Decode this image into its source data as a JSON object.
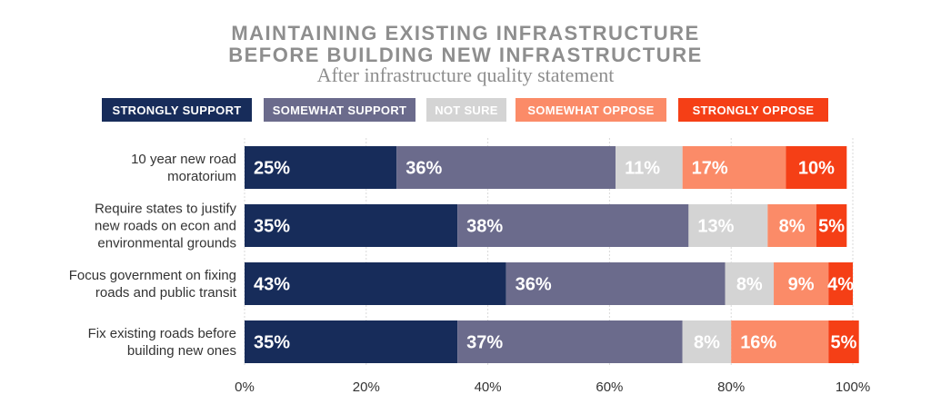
{
  "chart_data": {
    "type": "bar",
    "orientation": "horizontal",
    "stacked": true,
    "title_line1": "MAINTAINING EXISTING INFRASTRUCTURE",
    "title_line2": "BEFORE BUILDING NEW INFRASTRUCTURE",
    "subtitle": "After infrastructure quality statement",
    "categories": [
      [
        "10 year new road",
        "moratorium"
      ],
      [
        "Require states to justify",
        "new roads on econ and",
        "environmental grounds"
      ],
      [
        "Focus government on fixing",
        "roads and public transit"
      ],
      [
        "Fix existing roads before",
        "building new ones"
      ]
    ],
    "series": [
      {
        "name": "STRONGLY SUPPORT",
        "color": "#172c5a",
        "values": [
          25,
          35,
          43,
          35
        ],
        "labels": [
          "25%",
          "35%",
          "43%",
          "35%"
        ]
      },
      {
        "name": "SOMEWHAT SUPPORT",
        "color": "#6b6b8c",
        "values": [
          36,
          38,
          36,
          37
        ],
        "labels": [
          "36%",
          "38%",
          "36%",
          "37%"
        ]
      },
      {
        "name": "NOT SURE",
        "color": "#d4d4d4",
        "values": [
          11,
          13,
          8,
          8
        ],
        "labels": [
          "11%",
          "13%",
          "8%",
          "8%"
        ]
      },
      {
        "name": "SOMEWHAT OPPOSE",
        "color": "#fb8b68",
        "values": [
          17,
          8,
          9,
          16
        ],
        "labels": [
          "17%",
          "8%",
          "9%",
          "16%"
        ]
      },
      {
        "name": "STRONGLY OPPOSE",
        "color": "#f53f16",
        "values": [
          10,
          5,
          4,
          5
        ],
        "labels": [
          "10%",
          "5%",
          "4%",
          "5%"
        ]
      }
    ],
    "xlim": [
      0,
      100
    ],
    "x_ticks": [
      "0%",
      "20%",
      "40%",
      "60%",
      "80%",
      "100%"
    ],
    "grid": "vertical",
    "legend_position": "top"
  }
}
